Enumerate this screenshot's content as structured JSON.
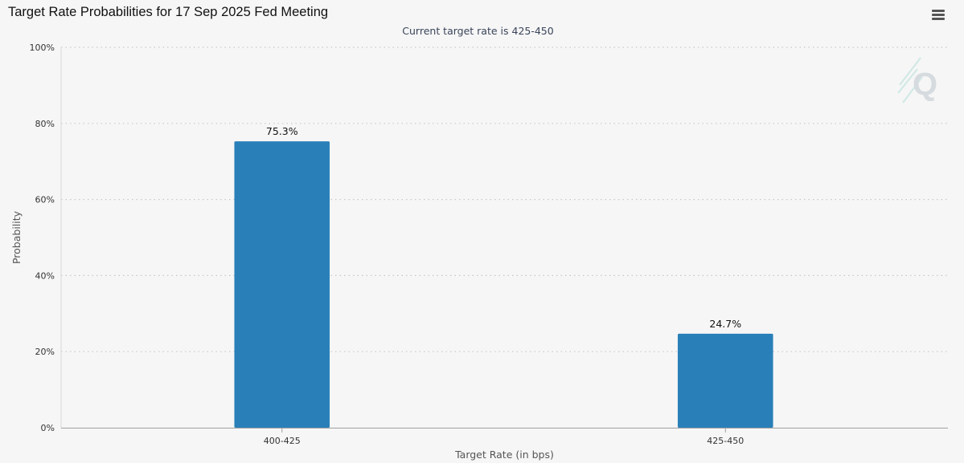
{
  "header": {
    "title": "Target Rate Probabilities for 17 Sep 2025 Fed Meeting",
    "subtitle": "Current target rate is 425-450"
  },
  "menu": {
    "icon": "hamburger-menu-icon"
  },
  "watermark": {
    "icon": "quikstrike-logo-icon"
  },
  "colors": {
    "bar": "#2980b9",
    "grid": "#c8c8c8",
    "axis": "#a0a0a0",
    "background": "#f6f6f6"
  },
  "chart_data": {
    "type": "bar",
    "categories": [
      "400-425",
      "425-450"
    ],
    "values": [
      75.3,
      24.7
    ],
    "data_labels": [
      "75.3%",
      "24.7%"
    ],
    "title": "Target Rate Probabilities for 17 Sep 2025 Fed Meeting",
    "subtitle": "Current target rate is 425-450",
    "xlabel": "Target Rate (in bps)",
    "ylabel": "Probability",
    "ylim": [
      0,
      100
    ],
    "yticks": [
      0,
      20,
      40,
      60,
      80,
      100
    ],
    "ytick_labels": [
      "0%",
      "20%",
      "40%",
      "60%",
      "80%",
      "100%"
    ],
    "grid": true,
    "legend": "none"
  }
}
